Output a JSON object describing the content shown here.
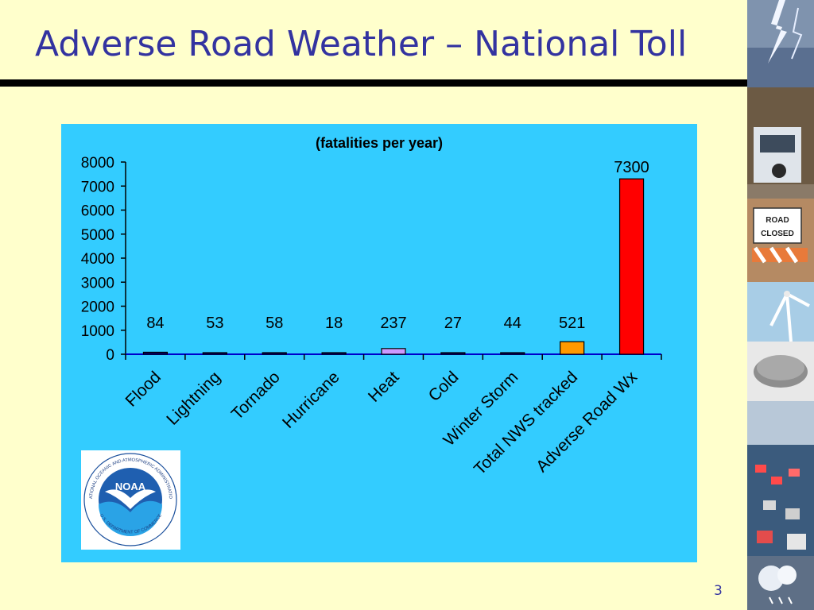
{
  "slide": {
    "title": "Adverse Road Weather – National Toll",
    "page_number": "3",
    "road_sign_text": [
      "ROAD",
      "CLOSED"
    ]
  },
  "logo": {
    "name": "NOAA",
    "ring_text": "NATIONAL OCEANIC AND ATMOSPHERIC ADMINISTRATION",
    "bottom_text": "U.S. DEPARTMENT OF COMMERCE"
  },
  "chart_data": {
    "type": "bar",
    "subtitle": "(fatalities per year)",
    "categories": [
      "Flood",
      "Lightning",
      "Tornado",
      "Hurricane",
      "Heat",
      "Cold",
      "Winter Storm",
      "Total NWS tracked",
      "Adverse Road Wx"
    ],
    "values": [
      84,
      53,
      58,
      18,
      237,
      27,
      44,
      521,
      7300
    ],
    "value_labels": [
      "84",
      "53",
      "58",
      "18",
      "237",
      "27",
      "44",
      "521",
      "7300"
    ],
    "bar_colors": [
      "#000080",
      "#000080",
      "#000080",
      "#000080",
      "#cc99ff",
      "#000080",
      "#000080",
      "#ff9900",
      "#ff0000"
    ],
    "y_ticks": [
      0,
      1000,
      2000,
      3000,
      4000,
      5000,
      6000,
      7000,
      8000
    ],
    "ylim": [
      0,
      8000
    ],
    "grid": false,
    "legend": "none",
    "background": "#33ccff"
  }
}
